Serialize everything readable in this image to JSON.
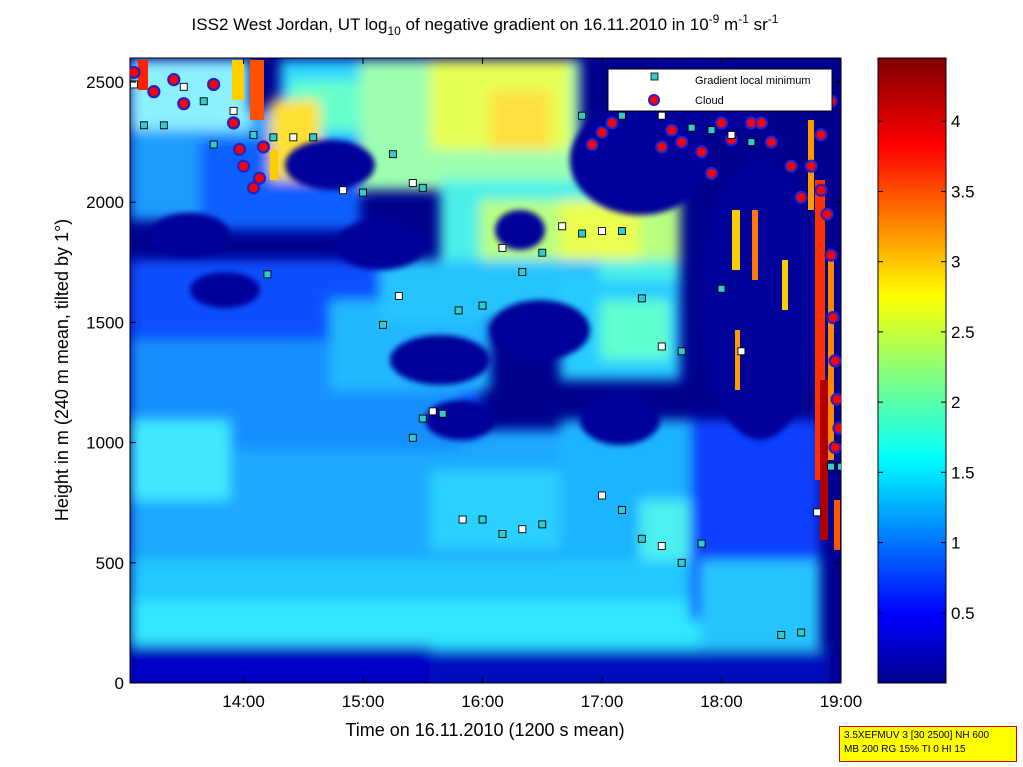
{
  "chart_data": {
    "type": "heatmap",
    "title": {
      "main": "ISS2 West Jordan, UT log",
      "sub1": "10",
      "mid": " of negative gradient on 16.11.2010 in 10",
      "sup1": "-9",
      "mid2": " m",
      "sup2": "-1",
      "mid3": " sr",
      "sup3": "-1"
    },
    "xlabel": "Time on 16.11.2010 (1200 s mean)",
    "ylabel": "Height in m (240 m mean, tilted by 1°)",
    "xlim": [
      "13:03",
      "19:00"
    ],
    "ylim": [
      0,
      2600
    ],
    "x_ticks": [
      "14:00",
      "15:00",
      "16:00",
      "17:00",
      "18:00",
      "19:00"
    ],
    "y_ticks": [
      "0",
      "500",
      "1000",
      "1500",
      "2000",
      "2500"
    ],
    "colorbar": {
      "range": [
        0,
        4.45
      ],
      "ticks": [
        "0.5",
        "1",
        "1.5",
        "2",
        "2.5",
        "3",
        "3.5",
        "4"
      ],
      "colormap": "jet"
    },
    "legend": {
      "placement": "top-right",
      "entries": [
        {
          "label": "Gradient local minimum",
          "marker": "square",
          "color": "#33cccc"
        },
        {
          "label": "Cloud",
          "marker": "circle",
          "color": "#cc0000"
        }
      ]
    },
    "gradient_minima": [
      {
        "t": "13:05",
        "h": 2490
      },
      {
        "t": "13:10",
        "h": 2320
      },
      {
        "t": "13:20",
        "h": 2320
      },
      {
        "t": "13:30",
        "h": 2480
      },
      {
        "t": "13:40",
        "h": 2420
      },
      {
        "t": "13:45",
        "h": 2240
      },
      {
        "t": "13:55",
        "h": 2380
      },
      {
        "t": "14:05",
        "h": 2280
      },
      {
        "t": "14:15",
        "h": 2270
      },
      {
        "t": "14:25",
        "h": 2270
      },
      {
        "t": "14:35",
        "h": 2270
      },
      {
        "t": "14:12",
        "h": 1700
      },
      {
        "t": "14:50",
        "h": 2050
      },
      {
        "t": "15:00",
        "h": 2040
      },
      {
        "t": "15:15",
        "h": 2200
      },
      {
        "t": "15:25",
        "h": 2080
      },
      {
        "t": "15:30",
        "h": 2060
      },
      {
        "t": "15:10",
        "h": 1490
      },
      {
        "t": "15:18",
        "h": 1610
      },
      {
        "t": "15:25",
        "h": 1020
      },
      {
        "t": "15:30",
        "h": 1100
      },
      {
        "t": "15:35",
        "h": 1130
      },
      {
        "t": "15:40",
        "h": 1120
      },
      {
        "t": "15:48",
        "h": 1550
      },
      {
        "t": "15:50",
        "h": 680
      },
      {
        "t": "16:00",
        "h": 680
      },
      {
        "t": "16:10",
        "h": 620
      },
      {
        "t": "16:20",
        "h": 640
      },
      {
        "t": "16:30",
        "h": 660
      },
      {
        "t": "16:00",
        "h": 1570
      },
      {
        "t": "16:10",
        "h": 1810
      },
      {
        "t": "16:20",
        "h": 1710
      },
      {
        "t": "16:30",
        "h": 1790
      },
      {
        "t": "16:40",
        "h": 1900
      },
      {
        "t": "16:50",
        "h": 1870
      },
      {
        "t": "16:50",
        "h": 2360
      },
      {
        "t": "17:00",
        "h": 780
      },
      {
        "t": "17:10",
        "h": 720
      },
      {
        "t": "17:20",
        "h": 600
      },
      {
        "t": "17:30",
        "h": 570
      },
      {
        "t": "17:40",
        "h": 500
      },
      {
        "t": "17:50",
        "h": 580
      },
      {
        "t": "17:00",
        "h": 1880
      },
      {
        "t": "17:10",
        "h": 1880
      },
      {
        "t": "17:20",
        "h": 1600
      },
      {
        "t": "17:30",
        "h": 1400
      },
      {
        "t": "17:40",
        "h": 1380
      },
      {
        "t": "17:10",
        "h": 2360
      },
      {
        "t": "17:30",
        "h": 2360
      },
      {
        "t": "17:45",
        "h": 2310
      },
      {
        "t": "17:55",
        "h": 2300
      },
      {
        "t": "18:05",
        "h": 2280
      },
      {
        "t": "18:15",
        "h": 2250
      },
      {
        "t": "18:00",
        "h": 1640
      },
      {
        "t": "18:10",
        "h": 1380
      },
      {
        "t": "18:30",
        "h": 200
      },
      {
        "t": "18:40",
        "h": 210
      },
      {
        "t": "18:48",
        "h": 710
      },
      {
        "t": "18:55",
        "h": 900
      },
      {
        "t": "19:00",
        "h": 900
      }
    ],
    "clouds": [
      {
        "t": "13:05",
        "h": 2540
      },
      {
        "t": "13:15",
        "h": 2460
      },
      {
        "t": "13:25",
        "h": 2510
      },
      {
        "t": "13:30",
        "h": 2410
      },
      {
        "t": "13:45",
        "h": 2490
      },
      {
        "t": "13:55",
        "h": 2330
      },
      {
        "t": "13:58",
        "h": 2220
      },
      {
        "t": "14:00",
        "h": 2150
      },
      {
        "t": "14:05",
        "h": 2060
      },
      {
        "t": "14:08",
        "h": 2100
      },
      {
        "t": "14:10",
        "h": 2230
      },
      {
        "t": "16:55",
        "h": 2240
      },
      {
        "t": "17:00",
        "h": 2290
      },
      {
        "t": "17:05",
        "h": 2330
      },
      {
        "t": "17:30",
        "h": 2230
      },
      {
        "t": "17:35",
        "h": 2300
      },
      {
        "t": "17:40",
        "h": 2250
      },
      {
        "t": "17:50",
        "h": 2210
      },
      {
        "t": "17:55",
        "h": 2120
      },
      {
        "t": "18:00",
        "h": 2330
      },
      {
        "t": "18:05",
        "h": 2260
      },
      {
        "t": "18:15",
        "h": 2330
      },
      {
        "t": "18:20",
        "h": 2330
      },
      {
        "t": "18:25",
        "h": 2250
      },
      {
        "t": "18:35",
        "h": 2150
      },
      {
        "t": "18:40",
        "h": 2020
      },
      {
        "t": "18:45",
        "h": 2150
      },
      {
        "t": "18:50",
        "h": 2050
      },
      {
        "t": "18:53",
        "h": 1950
      },
      {
        "t": "18:55",
        "h": 1780
      },
      {
        "t": "18:56",
        "h": 1520
      },
      {
        "t": "18:57",
        "h": 1340
      },
      {
        "t": "18:58",
        "h": 1180
      },
      {
        "t": "18:59",
        "h": 1060
      },
      {
        "t": "18:57",
        "h": 980
      },
      {
        "t": "18:50",
        "h": 2280
      },
      {
        "t": "18:55",
        "h": 2420
      }
    ]
  },
  "infobox": {
    "line1": "3.5XEFMUV 3 [30 2500] NH 600",
    "line2": "MB 200 RG 15% TI 0 HI 15"
  }
}
